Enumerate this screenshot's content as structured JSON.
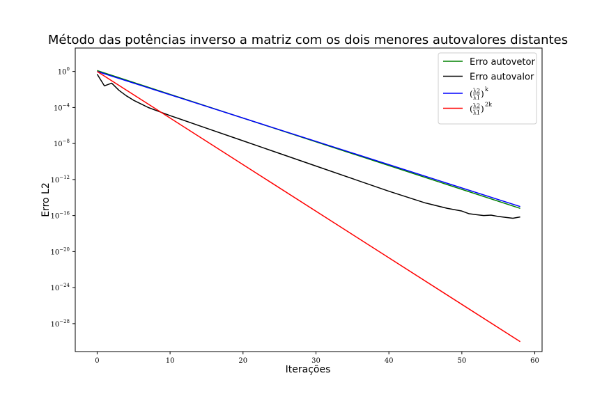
{
  "chart_data": {
    "type": "line",
    "title": "Método das potências inverso a matriz com os dois menores autovalores distantes",
    "xlabel": "Iterações",
    "ylabel": "Erro L2",
    "yscale": "log",
    "xlim": [
      -3,
      61
    ],
    "ylim_exp": [
      -31.1,
      2.6
    ],
    "xticks": [
      0,
      10,
      20,
      30,
      40,
      50,
      60
    ],
    "yticks_exp": [
      0,
      -4,
      -8,
      -12,
      -16,
      -20,
      -24,
      -28
    ],
    "ytick_base": "10",
    "legend_position": "top-right",
    "grid": false,
    "series": [
      {
        "name": "Erro autovetor",
        "color": "#008000",
        "x": [
          0,
          58
        ],
        "log10_y": [
          0.1,
          -15.2
        ]
      },
      {
        "name": "Erro autovalor",
        "color": "#000000",
        "x": [
          0,
          1,
          2,
          3,
          4,
          5,
          6,
          7,
          8,
          10,
          15,
          20,
          25,
          30,
          35,
          40,
          45,
          48,
          50,
          51,
          52,
          53,
          54,
          55,
          56,
          57,
          58
        ],
        "log10_y": [
          -0.3,
          -1.6,
          -1.3,
          -2.1,
          -2.7,
          -3.2,
          -3.6,
          -4.0,
          -4.3,
          -4.9,
          -6.3,
          -7.7,
          -9.1,
          -10.5,
          -11.9,
          -13.3,
          -14.6,
          -15.2,
          -15.5,
          -15.8,
          -15.9,
          -16.0,
          -15.95,
          -16.1,
          -16.2,
          -16.3,
          -16.15
        ]
      },
      {
        "name": "(λ2/λ1)^k",
        "legend_parts": {
          "lambda_top": "λ2",
          "lambda_bottom": "λ1",
          "exponent": "k"
        },
        "color": "#0000ff",
        "x": [
          0,
          58
        ],
        "log10_y": [
          0.0,
          -15.0
        ]
      },
      {
        "name": "(λ2/λ1)^2k",
        "legend_parts": {
          "lambda_top": "λ2",
          "lambda_bottom": "λ1",
          "exponent": "2k"
        },
        "color": "#ff0000",
        "x": [
          0,
          58
        ],
        "log10_y": [
          0.0,
          -30.0
        ]
      }
    ]
  }
}
